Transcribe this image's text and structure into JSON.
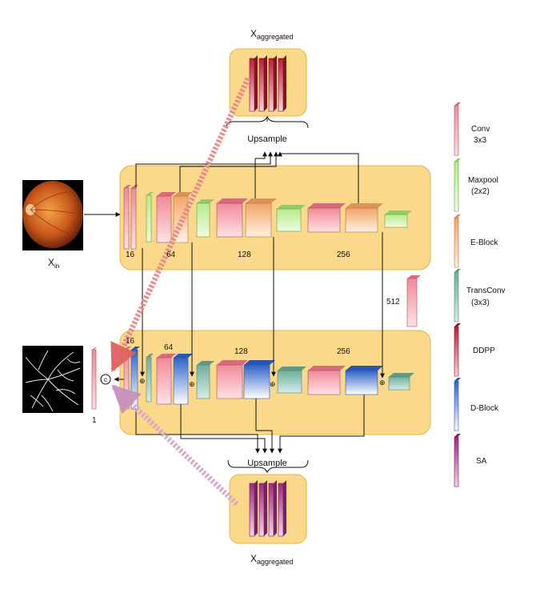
{
  "diagram": {
    "top_output_label": "X",
    "top_output_sub": "aggregated",
    "bottom_output_label": "X",
    "bottom_output_sub": "aggregated",
    "input_label": "X",
    "input_sub": "in",
    "upsample_top": "Upsample",
    "upsample_bottom": "Upsample",
    "concat_symbol": "c",
    "output_channels": "1",
    "bottleneck_channels": "512",
    "encoder_channels": [
      "16",
      "64",
      "128",
      "256"
    ],
    "decoder_channels": [
      "16",
      "64",
      "128",
      "256"
    ],
    "plus_symbol": "⊕"
  },
  "legend": {
    "items": [
      {
        "label": "Conv",
        "sub": "3x3",
        "color": "#f4a6b0"
      },
      {
        "label": "Maxpool",
        "sub": "(2x2)",
        "color": "#c8f0a8"
      },
      {
        "label": "E-Block",
        "sub": "",
        "color": "#f6c08e"
      },
      {
        "label": "TransConv",
        "sub": "(3x3)",
        "color": "#8fc0b0"
      },
      {
        "label": "DDPP",
        "sub": "",
        "color": "#c9304a"
      },
      {
        "label": "D-Block",
        "sub": "",
        "color": "#3a6fd0"
      },
      {
        "label": "SA",
        "sub": "",
        "color": "#b03a8a"
      }
    ]
  },
  "colors": {
    "panel": "#fbd98a",
    "panel_edge": "#e7b44a",
    "arrow_top": "#e88a8a",
    "arrow_bottom": "#d9a8c8"
  }
}
